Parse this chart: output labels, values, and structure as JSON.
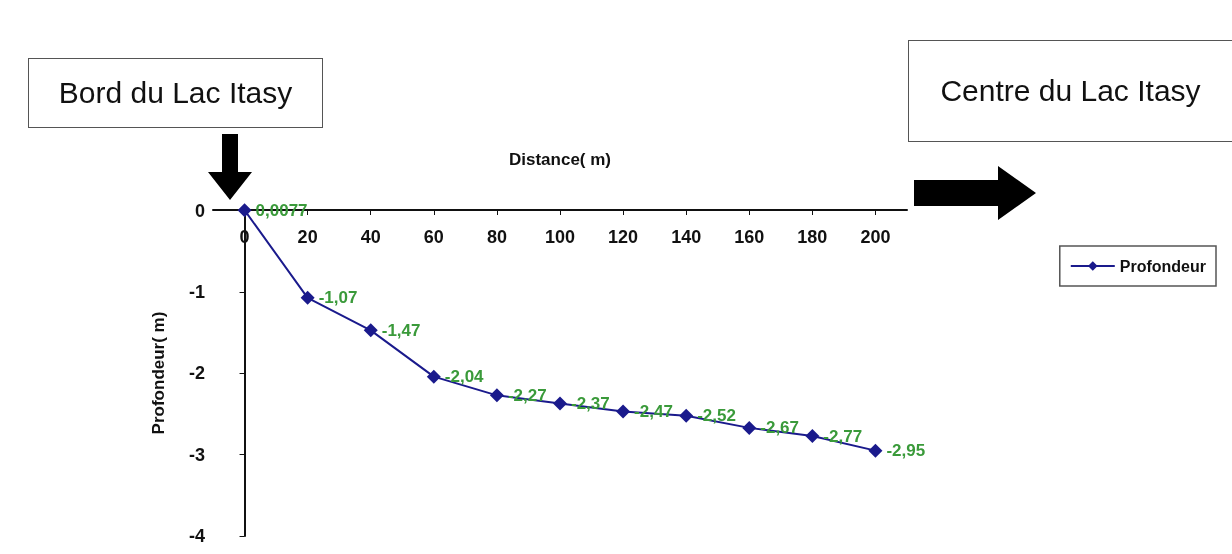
{
  "chart_data": {
    "type": "line",
    "xlabel": "Distance( m)",
    "ylabel": "Profondeur( m)",
    "x": [
      0,
      20,
      40,
      60,
      80,
      100,
      120,
      140,
      160,
      180,
      200
    ],
    "series": [
      {
        "name": "Profondeur",
        "color": "#1a1a8c",
        "values": [
          0.0077,
          -1.07,
          -1.47,
          -2.04,
          -2.27,
          -2.37,
          -2.47,
          -2.52,
          -2.67,
          -2.77,
          -2.95
        ],
        "value_labels": [
          "0,0077",
          "-1,07",
          "-1,47",
          "-2,04",
          "-2,27",
          "-2,37",
          "-2,47",
          "-2,52",
          "-2,67",
          "-2,77",
          "-2,95"
        ]
      }
    ],
    "xlim": [
      -10,
      210
    ],
    "xticks": [
      0,
      20,
      40,
      60,
      80,
      100,
      120,
      140,
      160,
      180,
      200
    ],
    "ylim": [
      -4,
      0.01
    ],
    "yticks": [
      -4,
      -3,
      -2,
      -1,
      0
    ],
    "marker": "diamond",
    "legend": "right",
    "grid": false,
    "annotations": [
      "Bord du Lac Itasy",
      "Centre du Lac Itasy"
    ]
  }
}
